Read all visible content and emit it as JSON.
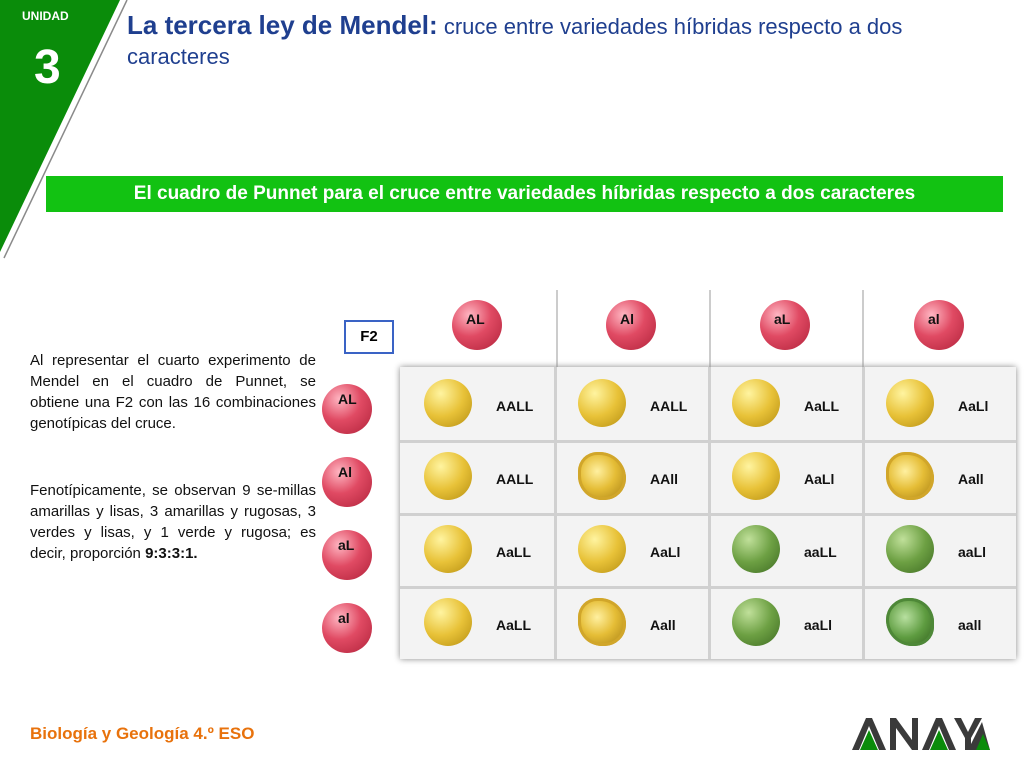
{
  "unit": {
    "label": "UNIDAD",
    "number": "3"
  },
  "title": {
    "main": "La tercera ley de Mendel:",
    "rest": "cruce entre variedades híbridas respecto a dos caracteres"
  },
  "banner": "El cuadro de Punnet para el cruce entre variedades híbridas respecto a dos caracteres",
  "text": {
    "p1": "Al representar el cuarto experimento de Mendel en el cuadro de Punnet, se obtiene una F2 con las 16 combinaciones genotípicas del cruce.",
    "p2": "Fenotípicamente, se observan 9 se-millas amarillas y lisas, 3 amarillas y rugosas, 3 verdes y lisas, y 1 verde y rugosa; es decir, proporción",
    "p2_bold": "9:3:3:1."
  },
  "table": {
    "label": "F2",
    "col_gametes": [
      "AL",
      "Al",
      "aL",
      "al"
    ],
    "row_gametes": [
      "AL",
      "Al",
      "aL",
      "al"
    ],
    "cells": [
      [
        "AALL",
        "AALL",
        "AaLL",
        "AaLl"
      ],
      [
        "AALL",
        "AAll",
        "AaLl",
        "Aall"
      ],
      [
        "AaLL",
        "AaLl",
        "aaLL",
        "aaLl"
      ],
      [
        "AaLL",
        "Aall",
        "aaLl",
        "aall"
      ]
    ],
    "seed_phenotypes": [
      [
        "yellow-smooth",
        "yellow-smooth",
        "yellow-smooth",
        "yellow-smooth"
      ],
      [
        "yellow-smooth",
        "yellow-wrinkled",
        "yellow-smooth",
        "yellow-wrinkled"
      ],
      [
        "yellow-smooth",
        "yellow-smooth",
        "green-smooth",
        "green-smooth"
      ],
      [
        "yellow-smooth",
        "yellow-wrinkled",
        "green-smooth",
        "green-wrinkled"
      ]
    ]
  },
  "footer": "Biología y Geología 4.º ESO",
  "logo_text": "ANAYA",
  "colors": {
    "unit_green": "#0a8c0a",
    "banner_green": "#12c212",
    "title_blue": "#1f3f8f",
    "footer_orange": "#e8720c",
    "gamete_red": "#e04a63"
  }
}
